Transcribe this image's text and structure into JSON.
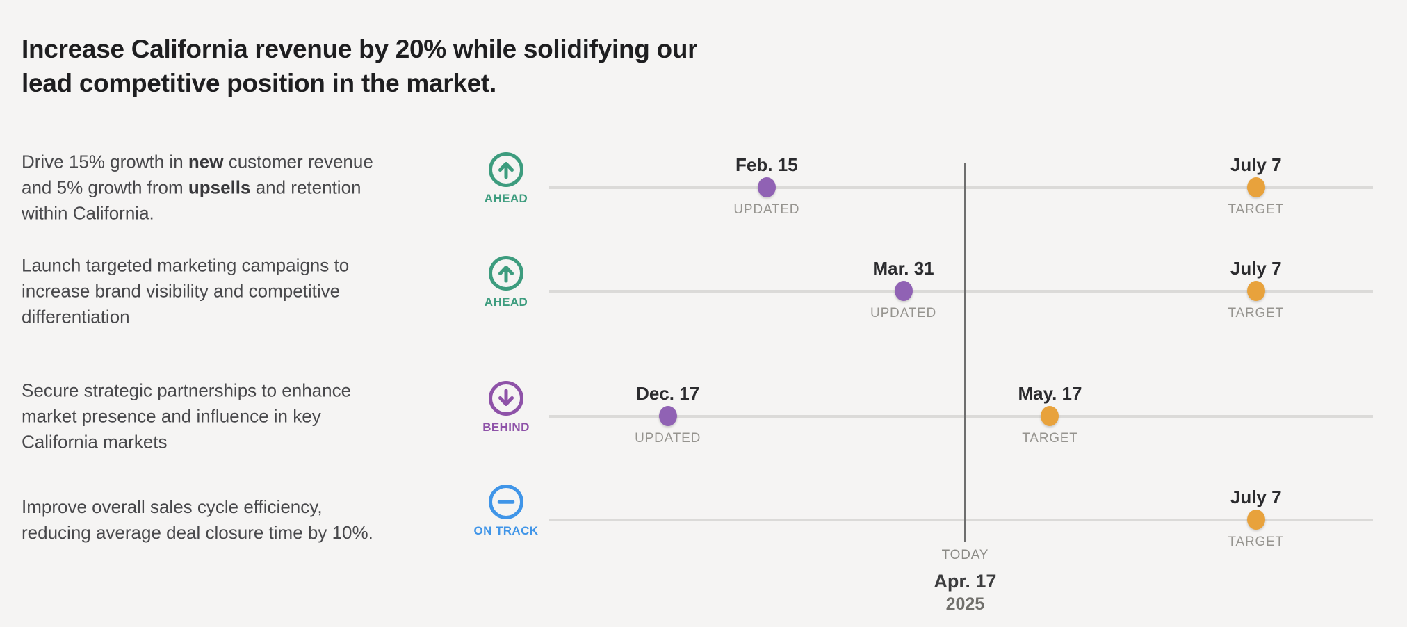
{
  "page": {
    "background_color": "#F5F4F3"
  },
  "title": {
    "text": "Increase California revenue by 20% while solidifying our lead competitive position in the market."
  },
  "timeline": {
    "today": {
      "label": "TODAY",
      "date": "Apr. 17",
      "year": "2025",
      "position_pct": 50.5
    },
    "colors": {
      "track": "#DBDAD8",
      "today_line": "#6E6E6E",
      "updated_dot": "#9062B4",
      "target_dot": "#E8A23C"
    }
  },
  "statuses": {
    "ahead": {
      "label": "AHEAD",
      "color": "#3D9C7E",
      "icon": "arrow-up-circle-icon"
    },
    "behind": {
      "label": "BEHIND",
      "color": "#8E52A8",
      "icon": "arrow-down-circle-icon"
    },
    "on_track": {
      "label": "ON TRACK",
      "color": "#4095E8",
      "icon": "minus-circle-icon"
    }
  },
  "rows": [
    {
      "description_segments": [
        {
          "text": "Drive 15% growth in ",
          "bold": false
        },
        {
          "text": "new",
          "bold": true
        },
        {
          "text": " customer revenue and 5% growth from ",
          "bold": false
        },
        {
          "text": "upsells",
          "bold": true
        },
        {
          "text": " and retention within California.",
          "bold": false
        }
      ],
      "status": "ahead",
      "markers": [
        {
          "date": "Feb. 15",
          "kind": "UPDATED",
          "position_pct": 26.4
        },
        {
          "date": "July 7",
          "kind": "TARGET",
          "position_pct": 85.8
        }
      ]
    },
    {
      "description_segments": [
        {
          "text": "Launch targeted marketing campaigns to increase brand visibility and competitive differentiation",
          "bold": false
        }
      ],
      "status": "ahead",
      "markers": [
        {
          "date": "Mar. 31",
          "kind": "UPDATED",
          "position_pct": 43.0
        },
        {
          "date": "July 7",
          "kind": "TARGET",
          "position_pct": 85.8
        }
      ]
    },
    {
      "description_segments": [
        {
          "text": "Secure strategic partnerships to enhance market presence and influence in key California markets",
          "bold": false
        }
      ],
      "status": "behind",
      "markers": [
        {
          "date": "Dec. 17",
          "kind": "UPDATED",
          "position_pct": 14.4
        },
        {
          "date": "May. 17",
          "kind": "TARGET",
          "position_pct": 60.8
        }
      ]
    },
    {
      "description_segments": [
        {
          "text": "Improve overall sales cycle efficiency, reducing average deal closure time by 10%.",
          "bold": false
        }
      ],
      "status": "on_track",
      "markers": [
        {
          "date": "July 7",
          "kind": "TARGET",
          "position_pct": 85.8
        }
      ]
    }
  ]
}
